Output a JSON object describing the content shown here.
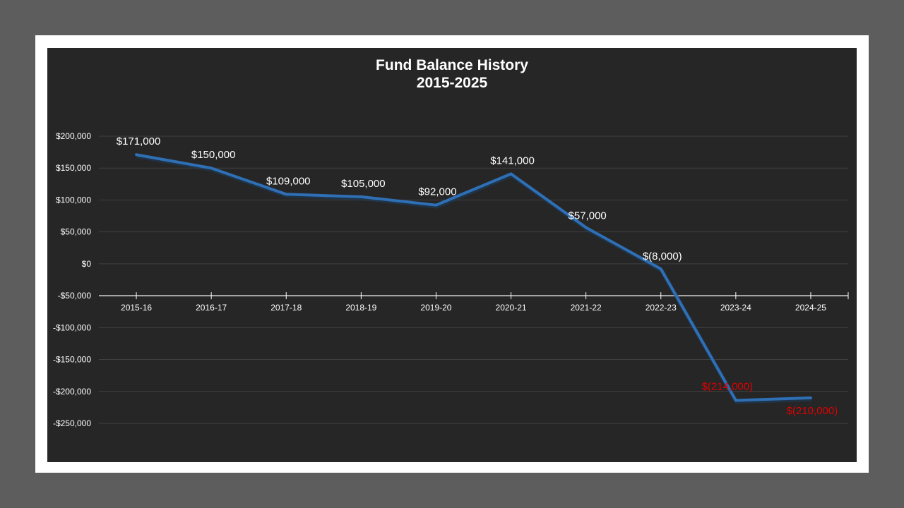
{
  "chart_data": {
    "type": "line",
    "title": "Fund Balance History",
    "subtitle": "2015-2025",
    "xlabel": "",
    "ylabel": "",
    "categories": [
      "2015-16",
      "2016-17",
      "2017-18",
      "2018-19",
      "2019-20",
      "2020-21",
      "2021-22",
      "2022-23",
      "2023-24",
      "2024-25"
    ],
    "series": [
      {
        "name": "Fund Balance",
        "color": "#2e6fb5",
        "values": [
          171000,
          150000,
          109000,
          105000,
          92000,
          141000,
          57000,
          -8000,
          -214000,
          -210000
        ],
        "data_labels": [
          "$171,000",
          "$150,000",
          "$109,000",
          "$105,000",
          "$92,000",
          "$141,000",
          "$57,000",
          "$(8,000)",
          "$(214,000)",
          "$(210,000)"
        ]
      }
    ],
    "y_ticks": [
      "$200,000",
      "$150,000",
      "$100,000",
      "$50,000",
      "$0",
      "-$50,000",
      "-$100,000",
      "-$150,000",
      "-$200,000",
      "-$250,000"
    ],
    "ylim": [
      -250000,
      200000
    ],
    "category_axis_crosses_at": -50000,
    "grid": true,
    "legend": "none",
    "colors": {
      "background": "#262626",
      "frame": "#ffffff",
      "outer": "#5d5d5d",
      "line": "#2e6fb5",
      "label_positive": "#ffffff",
      "label_negative_highlight": "#e00000",
      "gridline": "#404040"
    }
  }
}
